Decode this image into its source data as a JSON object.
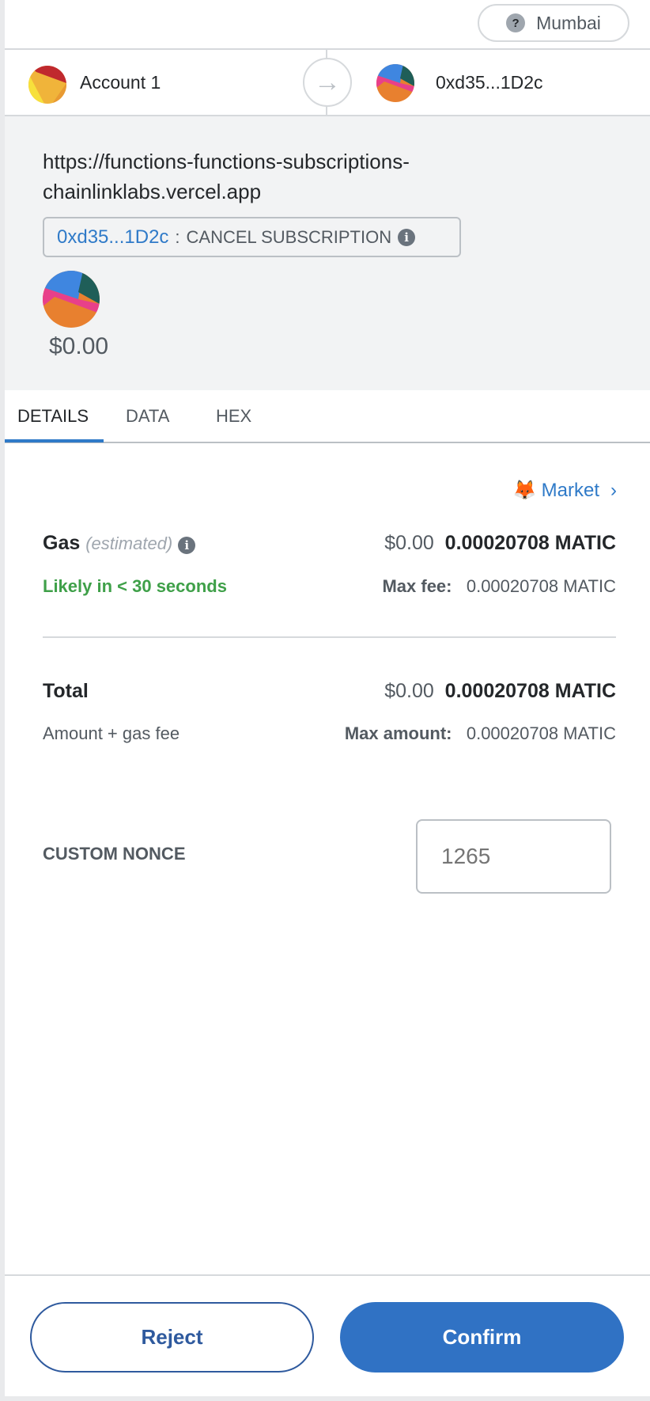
{
  "network": {
    "label": "Mumbai",
    "icon": "question-icon"
  },
  "from": {
    "name": "Account 1"
  },
  "to": {
    "address": "0xd35...1D2c"
  },
  "origin": {
    "url_line1": "https://functions-functions-subscriptions-",
    "url_line2": "chainlinklabs.vercel.app"
  },
  "method": {
    "address": "0xd35...1D2c",
    "separator": ":",
    "name": "CANCEL SUBSCRIPTION"
  },
  "amount": "$0.00",
  "tabs": [
    {
      "label": "DETAILS",
      "active": true
    },
    {
      "label": "DATA"
    },
    {
      "label": "HEX"
    }
  ],
  "market": {
    "label": "Market",
    "chevron": "›"
  },
  "gas": {
    "label": "Gas",
    "estimated": "(estimated)",
    "fiat": "$0.00",
    "value": "0.00020708 MATIC",
    "likely": "Likely in < 30 seconds",
    "max_fee_label": "Max fee:",
    "max_fee": "0.00020708 MATIC"
  },
  "total": {
    "label": "Total",
    "fiat": "$0.00",
    "value": "0.00020708 MATIC",
    "sub": "Amount + gas fee",
    "max_amount_label": "Max amount:",
    "max_amount": "0.00020708 MATIC"
  },
  "nonce": {
    "label": "CUSTOM NONCE",
    "placeholder": "1265"
  },
  "buttons": {
    "reject": "Reject",
    "confirm": "Confirm"
  },
  "colors": {
    "accent": "#2f7ac8",
    "confirm": "#3072c4",
    "success": "#3fa049"
  }
}
